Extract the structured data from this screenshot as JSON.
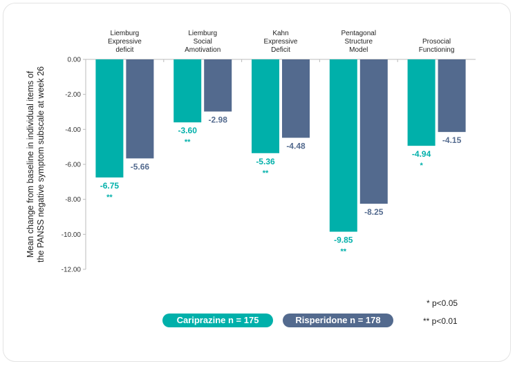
{
  "chart_data": {
    "type": "bar",
    "ylabel_lines": [
      "Mean change from baseline in individual items of",
      "the PANSS negative symptom subscale at week 26"
    ],
    "ylim": [
      -12,
      0
    ],
    "yticks": [
      0,
      -2,
      -4,
      -6,
      -8,
      -10,
      -12
    ],
    "ytick_labels": [
      "0.00",
      "-2.00",
      "-4.00",
      "-6.00",
      "-8.00",
      "-10.00",
      "-12.00"
    ],
    "grid": false,
    "categories": [
      [
        "Liemburg",
        "Expressive",
        "deficit"
      ],
      [
        "Liemburg",
        "Social",
        "Amotivation"
      ],
      [
        "Kahn",
        "Expressive",
        "Deficit"
      ],
      [
        "Pentagonal",
        "Structure",
        "Model"
      ],
      [
        "Prosocial",
        "Functioning"
      ]
    ],
    "series": [
      {
        "name": "Cariprazine n = 175",
        "color": "#00b0aa",
        "values": [
          -6.75,
          -3.6,
          -5.36,
          -9.85,
          -4.94
        ],
        "labels": [
          "-6.75",
          "-3.60",
          "-5.36",
          "-9.85",
          "-4.94"
        ],
        "significance": [
          "**",
          "**",
          "**",
          "**",
          "*"
        ]
      },
      {
        "name": "Risperidone n = 178",
        "color": "#536a8e",
        "values": [
          -5.66,
          -2.98,
          -4.48,
          -8.25,
          -4.15
        ],
        "labels": [
          "-5.66",
          "-2.98",
          "-4.48",
          "-8.25",
          "-4.15"
        ],
        "significance": [
          "",
          "",
          "",
          "",
          ""
        ]
      }
    ],
    "legend_position": "bottom-center",
    "footnotes": [
      "* p<0.05",
      "** p<0.01"
    ]
  }
}
